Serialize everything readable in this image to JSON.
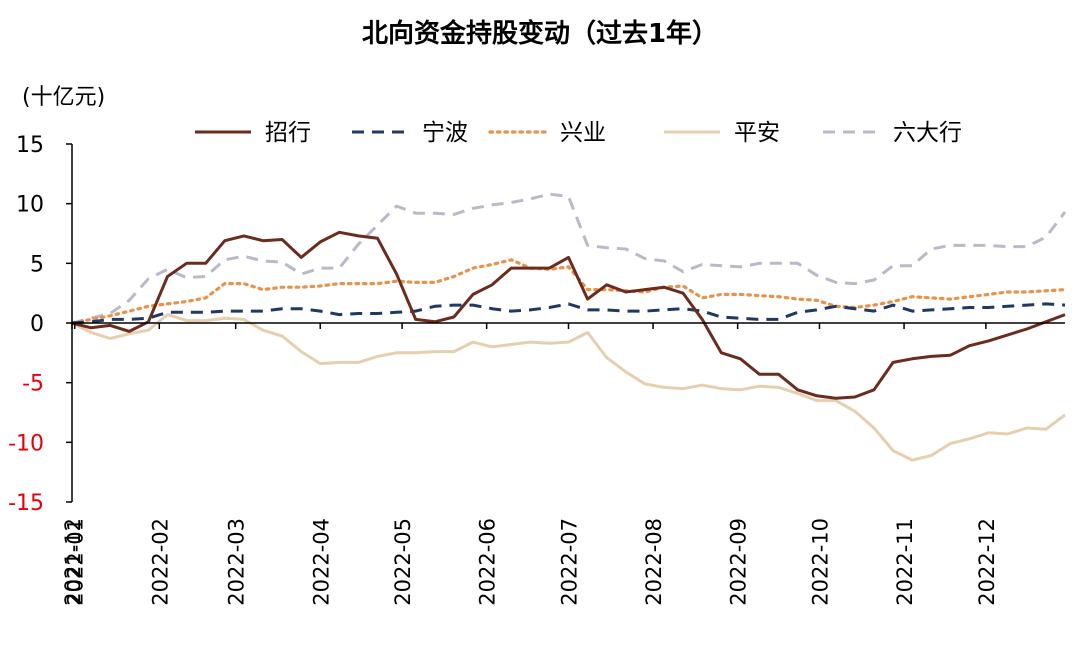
{
  "chart_data": {
    "type": "line",
    "title": "北向资金持股变动（过去1年）",
    "ylabel": "(十亿元)",
    "xlabel": "",
    "ylim": [
      -15,
      15
    ],
    "yticks": [
      15,
      10,
      5,
      0,
      -5,
      -10,
      -15
    ],
    "yticks_negative_color": "#e8000b",
    "x_tick_labels": [
      "2021-12",
      "2022-01",
      "2022-02",
      "2022-03",
      "2022-04",
      "2022-05",
      "2022-06",
      "2022-07",
      "2022-08",
      "2022-09",
      "2022-10",
      "2022-11",
      "2022-12"
    ],
    "legend_position": "top",
    "grid": false,
    "x": [
      "2021-12-31",
      "2022-01-07",
      "2022-01-14",
      "2022-01-21",
      "2022-01-28",
      "2022-02-04",
      "2022-02-11",
      "2022-02-18",
      "2022-02-25",
      "2022-03-04",
      "2022-03-11",
      "2022-03-18",
      "2022-03-25",
      "2022-04-01",
      "2022-04-08",
      "2022-04-15",
      "2022-04-22",
      "2022-04-29",
      "2022-05-06",
      "2022-05-13",
      "2022-05-20",
      "2022-05-27",
      "2022-06-03",
      "2022-06-10",
      "2022-06-17",
      "2022-06-24",
      "2022-07-01",
      "2022-07-08",
      "2022-07-15",
      "2022-07-22",
      "2022-07-29",
      "2022-08-05",
      "2022-08-12",
      "2022-08-19",
      "2022-08-26",
      "2022-09-02",
      "2022-09-09",
      "2022-09-16",
      "2022-09-23",
      "2022-09-30",
      "2022-10-07",
      "2022-10-14",
      "2022-10-21",
      "2022-10-28",
      "2022-11-04",
      "2022-11-11",
      "2022-11-18",
      "2022-11-25",
      "2022-12-02",
      "2022-12-09",
      "2022-12-16",
      "2022-12-23",
      "2022-12-30"
    ],
    "series": [
      {
        "name": "招行",
        "color": "#6b2c1e",
        "dash": "solid",
        "values": [
          0,
          -0.4,
          -0.2,
          -0.7,
          0.1,
          3.9,
          5.0,
          5.0,
          6.9,
          7.3,
          6.9,
          7.0,
          5.5,
          6.8,
          7.6,
          7.3,
          7.1,
          4.1,
          0.3,
          0.1,
          0.5,
          2.4,
          3.2,
          4.6,
          4.6,
          4.6,
          5.5,
          2.0,
          3.2,
          2.6,
          2.8,
          3.0,
          2.5,
          0.3,
          -2.5,
          -3.0,
          -4.3,
          -4.3,
          -5.6,
          -6.1,
          -6.3,
          -6.2,
          -5.6,
          -3.3,
          -3.0,
          -2.8,
          -2.7,
          -1.9,
          -1.5,
          -1.0,
          -0.5,
          0.1,
          0.7
        ]
      },
      {
        "name": "宁波",
        "color": "#1f3864",
        "dash": "dashed",
        "values": [
          0,
          0.1,
          0.3,
          0.3,
          0.4,
          0.9,
          0.9,
          0.9,
          1.0,
          1.0,
          1.0,
          1.2,
          1.2,
          1.0,
          0.7,
          0.8,
          0.8,
          0.9,
          1.0,
          1.4,
          1.5,
          1.5,
          1.2,
          1.0,
          1.1,
          1.3,
          1.6,
          1.1,
          1.1,
          1.0,
          1.0,
          1.1,
          1.2,
          1.0,
          0.5,
          0.4,
          0.3,
          0.3,
          0.9,
          1.1,
          1.4,
          1.2,
          1.0,
          1.5,
          1.0,
          1.1,
          1.2,
          1.3,
          1.3,
          1.4,
          1.5,
          1.6,
          1.5
        ]
      },
      {
        "name": "兴业",
        "color": "#e8924a",
        "dash": "dotted",
        "values": [
          0,
          0.3,
          0.6,
          1.0,
          1.4,
          1.6,
          1.8,
          2.1,
          3.3,
          3.3,
          2.8,
          3.0,
          3.0,
          3.1,
          3.3,
          3.3,
          3.3,
          3.5,
          3.4,
          3.4,
          3.9,
          4.6,
          4.9,
          5.3,
          4.6,
          4.5,
          4.7,
          2.8,
          2.8,
          2.7,
          2.6,
          3.0,
          3.1,
          2.1,
          2.4,
          2.4,
          2.3,
          2.2,
          2.0,
          1.9,
          1.4,
          1.3,
          1.5,
          1.8,
          2.2,
          2.1,
          2.0,
          2.2,
          2.4,
          2.6,
          2.6,
          2.7,
          2.8
        ]
      },
      {
        "name": "平安",
        "color": "#e6cfae",
        "dash": "solid",
        "values": [
          0,
          -0.8,
          -1.3,
          -0.9,
          -0.6,
          0.7,
          0.2,
          0.2,
          0.4,
          0.3,
          -0.6,
          -1.1,
          -2.4,
          -3.4,
          -3.3,
          -3.3,
          -2.8,
          -2.5,
          -2.5,
          -2.4,
          -2.4,
          -1.6,
          -2.0,
          -1.8,
          -1.6,
          -1.7,
          -1.6,
          -0.8,
          -2.9,
          -4.1,
          -5.1,
          -5.4,
          -5.5,
          -5.2,
          -5.5,
          -5.6,
          -5.3,
          -5.4,
          -5.9,
          -6.5,
          -6.5,
          -7.4,
          -8.8,
          -10.7,
          -11.5,
          -11.1,
          -10.1,
          -9.7,
          -9.2,
          -9.3,
          -8.8,
          -8.9,
          -7.7
        ]
      },
      {
        "name": "六大行",
        "color": "#b9b9c9",
        "dash": "dashed",
        "values": [
          0,
          0.4,
          0.8,
          1.9,
          3.7,
          4.5,
          3.8,
          3.9,
          5.3,
          5.6,
          5.2,
          5.1,
          4.1,
          4.6,
          4.6,
          6.6,
          8.2,
          9.8,
          9.2,
          9.2,
          9.1,
          9.6,
          9.9,
          10.1,
          10.4,
          10.8,
          10.6,
          6.5,
          6.3,
          6.2,
          5.4,
          5.2,
          4.3,
          4.9,
          4.8,
          4.7,
          5.0,
          5.0,
          5.0,
          4.0,
          3.4,
          3.3,
          3.6,
          4.8,
          4.8,
          6.2,
          6.5,
          6.5,
          6.5,
          6.4,
          6.4,
          7.2,
          9.3
        ]
      }
    ]
  }
}
